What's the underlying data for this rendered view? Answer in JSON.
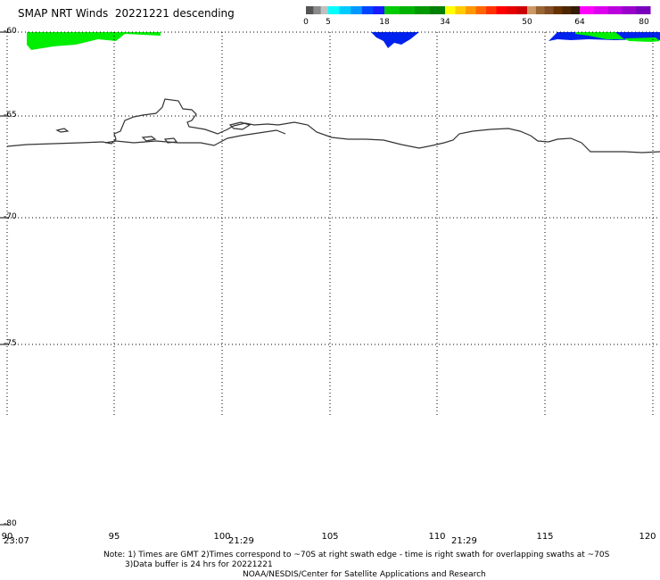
{
  "title": "SMAP NRT Winds  20221221 descending",
  "colorbar": {
    "segments": [
      {
        "from": 0,
        "to": 5,
        "colors": [
          "#555555",
          "#8a8a8a",
          "#c0c0c0"
        ]
      },
      {
        "from": 5,
        "to": 18,
        "colors": [
          "#00ffff",
          "#00ccff",
          "#0099ff",
          "#0044ff",
          "#1a1aff"
        ]
      },
      {
        "from": 18,
        "to": 34,
        "colors": [
          "#00cc00",
          "#00b300",
          "#009900",
          "#008000"
        ]
      },
      {
        "from": 34,
        "to": 50,
        "colors": [
          "#ffff00",
          "#ffcc00",
          "#ff9900",
          "#ff6600",
          "#ff3300",
          "#ff0000",
          "#e60000",
          "#cc0000"
        ]
      },
      {
        "from": 50,
        "to": 64,
        "colors": [
          "#cc9966",
          "#996633",
          "#804d26",
          "#663300",
          "#4d2600",
          "#331a00"
        ]
      },
      {
        "from": 64,
        "to": 80,
        "colors": [
          "#ff00ff",
          "#dd00ee",
          "#bb00dd",
          "#9900cc",
          "#7700bb"
        ]
      }
    ],
    "ticks": [
      "0",
      "5",
      "18",
      "34",
      "50",
      "64",
      "80"
    ]
  },
  "lat_labels": [
    "-60",
    "-65",
    "-70",
    "-75",
    "-80"
  ],
  "lon_labels": [
    "90",
    "95",
    "100",
    "105",
    "110",
    "115",
    "120"
  ],
  "time_labels": [
    "23:07",
    "21:29",
    "21:29"
  ],
  "notes": {
    "line1": "Note: 1) Times are GMT 2)Times correspond to ~70S at right swath edge - time is right swath for overlapping swaths at ~70S",
    "line2": "3)Data buffer is 24 hrs for 20221221",
    "line3": "NOAA/NESDIS/Center for Satellite Applications and Research"
  },
  "colors": {
    "swath_green": "#00ee00",
    "swath_blue": "#0022ee",
    "grid": "#000000",
    "coast": "#333333"
  }
}
